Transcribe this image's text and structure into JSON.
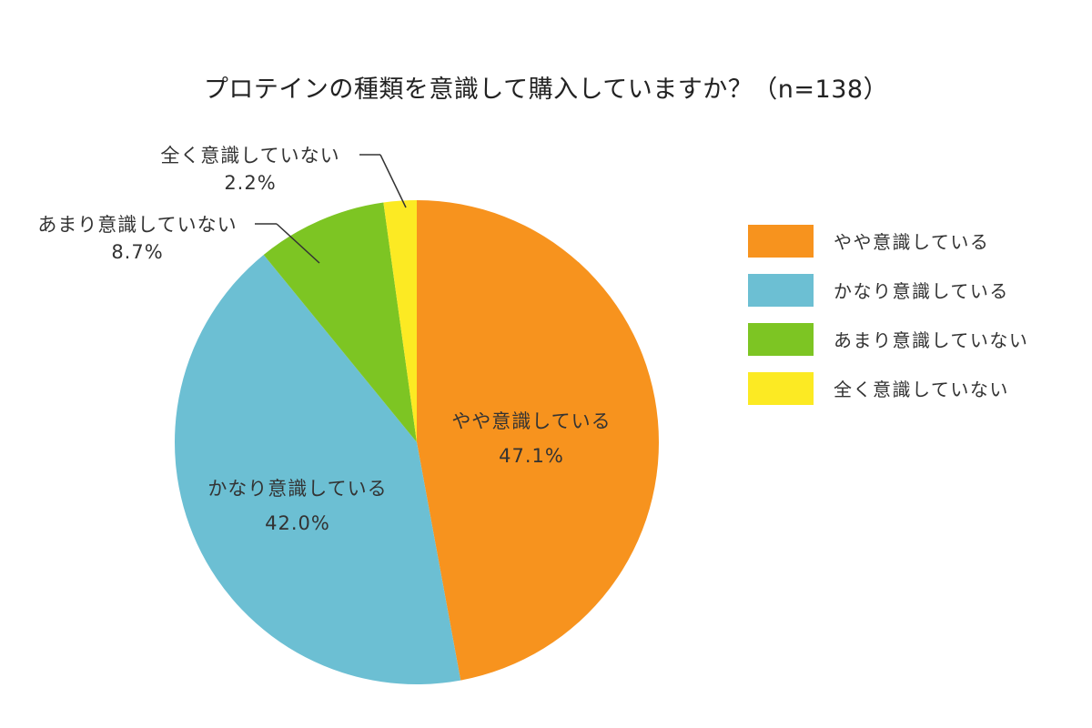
{
  "title": "プロテインの種類を意識して購入していますか？（n=138）",
  "chart_data": {
    "type": "pie",
    "title": "プロテインの種類を意識して購入していますか？（n=138）",
    "n": 138,
    "categories": [
      "やや意識している",
      "かなり意識している",
      "あまり意識していない",
      "全く意識していない"
    ],
    "values": [
      47.1,
      42.0,
      8.7,
      2.2
    ],
    "unit": "%",
    "colors": [
      "#F7931E",
      "#6CBFD3",
      "#7DC523",
      "#FCEA23"
    ],
    "start_angle": "12 o'clock",
    "direction": "clockwise",
    "legend_position": "right"
  },
  "labels": {
    "slice0": {
      "name": "やや意識している",
      "value": "47.1%"
    },
    "slice1": {
      "name": "かなり意識している",
      "value": "42.0%"
    },
    "slice2": {
      "name": "あまり意識していない",
      "value": "8.7%"
    },
    "slice3": {
      "name": "全く意識していない",
      "value": "2.2%"
    }
  },
  "legend": [
    {
      "label": "やや意識している",
      "color": "#F7931E"
    },
    {
      "label": "かなり意識している",
      "color": "#6CBFD3"
    },
    {
      "label": "あまり意識していない",
      "color": "#7DC523"
    },
    {
      "label": "全く意識していない",
      "color": "#FCEA23"
    }
  ]
}
